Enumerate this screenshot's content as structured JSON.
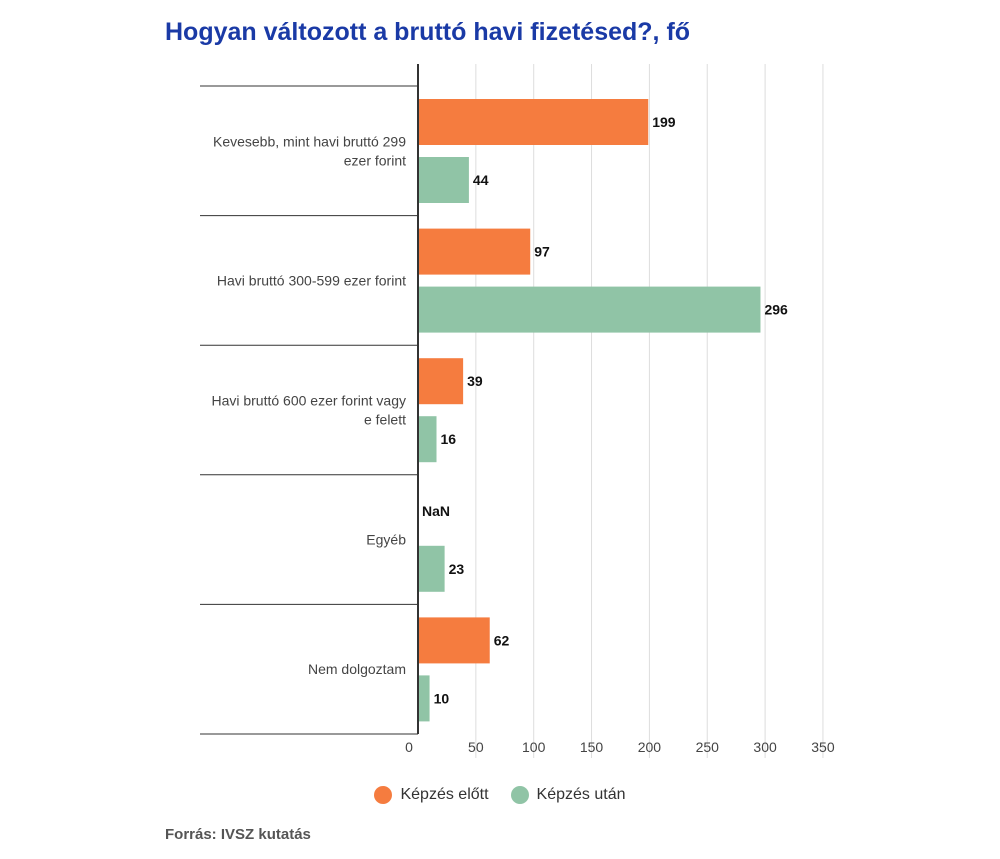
{
  "title": "Hogyan változott a bruttó havi fizetésed?, fő",
  "source": "Forrás: IVSZ kutatás",
  "colors": {
    "before": "#f57c3f",
    "after": "#90c4a6",
    "grid": "#dddddd",
    "axis": "#333333"
  },
  "legend": [
    {
      "label": "Képzés előtt",
      "color": "#f57c3f"
    },
    {
      "label": "Képzés után",
      "color": "#90c4a6"
    }
  ],
  "chart_data": {
    "type": "bar",
    "orientation": "horizontal",
    "title": "Hogyan változott a bruttó havi fizetésed?, fő",
    "categories": [
      [
        "Kevesebb, mint havi bruttó 299",
        "ezer forint"
      ],
      [
        "Havi bruttó 300-599 ezer forint"
      ],
      [
        "Havi bruttó 600 ezer forint vagy",
        "e felett"
      ],
      [
        "Egyéb"
      ],
      [
        "Nem dolgoztam"
      ]
    ],
    "series": [
      {
        "name": "Képzés előtt",
        "values": [
          199,
          97,
          39,
          null,
          62
        ],
        "labels": [
          "199",
          "97",
          "39",
          "NaN",
          "62"
        ]
      },
      {
        "name": "Képzés után",
        "values": [
          44,
          296,
          16,
          23,
          10
        ],
        "labels": [
          "44",
          "296",
          "16",
          "23",
          "10"
        ]
      }
    ],
    "xlim": [
      0,
      350
    ],
    "xticks": [
      0,
      50,
      100,
      150,
      200,
      250,
      300,
      350
    ],
    "grid": true,
    "legend_position": "bottom"
  }
}
